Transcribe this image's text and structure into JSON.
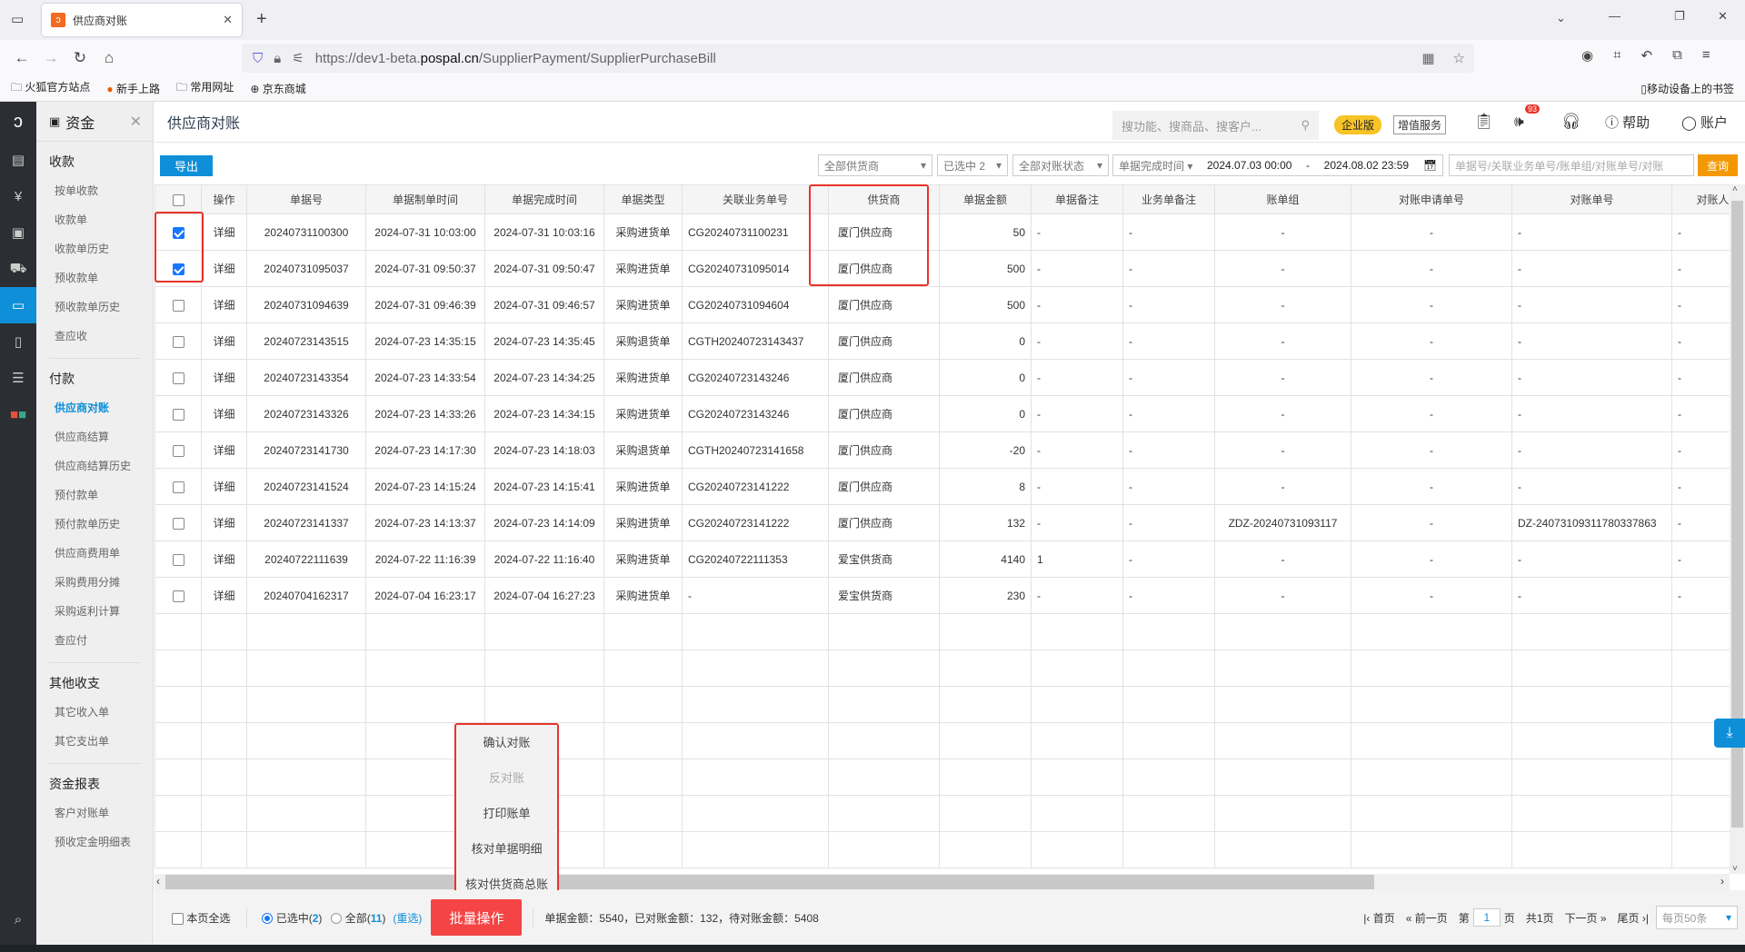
{
  "browser": {
    "tab_title": "供应商对账",
    "url_prefix": "https://dev1-beta.",
    "url_domain": "pospal.cn",
    "url_path": "/SupplierPayment/SupplierPurchaseBill",
    "bookmarks": [
      "火狐官方站点",
      "新手上路",
      "常用网址",
      "京东商城"
    ],
    "mobile_bookmarks": "移动设备上的书签"
  },
  "sidebar": {
    "title": "资金",
    "sections": [
      {
        "heading": "收款",
        "items": [
          "按单收款",
          "收款单",
          "收款单历史",
          "预收款单",
          "预收款单历史",
          "查应收"
        ]
      },
      {
        "heading": "付款",
        "items": [
          "供应商对账",
          "供应商结算",
          "供应商结算历史",
          "预付款单",
          "预付款单历史",
          "供应商费用单",
          "采购费用分摊",
          "采购返利计算",
          "查应付"
        ]
      },
      {
        "heading": "其他收支",
        "items": [
          "其它收入单",
          "其它支出单"
        ]
      },
      {
        "heading": "资金报表",
        "items": [
          "客户对账单",
          "预收定金明细表"
        ]
      }
    ],
    "active": "供应商对账"
  },
  "header": {
    "title": "供应商对账",
    "search_placeholder": "搜功能、搜商品、搜客户...",
    "enterprise": "企业版",
    "value_service": "增值服务",
    "badge_count": "93",
    "help": "帮助",
    "account": "账户"
  },
  "toolbar": {
    "export": "导出",
    "supplier_filter": "全部供货商",
    "selected_filter": "已选中 2",
    "status_filter": "全部对账状态",
    "time_type": "单据完成时间",
    "date_from": "2024.07.03 00:00",
    "date_sep": "-",
    "date_to": "2024.08.02 23:59",
    "search_placeholder": "单据号/关联业务单号/账单组/对账单号/对账",
    "query": "查询"
  },
  "table": {
    "columns": [
      "",
      "操作",
      "单据号",
      "单据制单时间",
      "单据完成时间",
      "单据类型",
      "关联业务单号",
      "供货商",
      "单据金额",
      "单据备注",
      "业务单备注",
      "账单组",
      "对账申请单号",
      "对账单号",
      "对账人"
    ],
    "rows": [
      {
        "checked": true,
        "op": "详细",
        "no": "20240731100300",
        "created": "2024-07-31 10:03:00",
        "done": "2024-07-31 10:03:16",
        "type": "采购进货单",
        "ref": "CG20240731100231",
        "supplier": "厦门供应商",
        "amount": "50",
        "note": "-",
        "bnote": "-",
        "group": "-",
        "apply": "-",
        "recon": "-",
        "person": "-"
      },
      {
        "checked": true,
        "op": "详细",
        "no": "20240731095037",
        "created": "2024-07-31 09:50:37",
        "done": "2024-07-31 09:50:47",
        "type": "采购进货单",
        "ref": "CG20240731095014",
        "supplier": "厦门供应商",
        "amount": "500",
        "note": "-",
        "bnote": "-",
        "group": "-",
        "apply": "-",
        "recon": "-",
        "person": "-"
      },
      {
        "checked": false,
        "op": "详细",
        "no": "20240731094639",
        "created": "2024-07-31 09:46:39",
        "done": "2024-07-31 09:46:57",
        "type": "采购进货单",
        "ref": "CG20240731094604",
        "supplier": "厦门供应商",
        "amount": "500",
        "note": "-",
        "bnote": "-",
        "group": "-",
        "apply": "-",
        "recon": "-",
        "person": "-"
      },
      {
        "checked": false,
        "op": "详细",
        "no": "20240723143515",
        "created": "2024-07-23 14:35:15",
        "done": "2024-07-23 14:35:45",
        "type": "采购退货单",
        "ref": "CGTH20240723143437",
        "supplier": "厦门供应商",
        "amount": "0",
        "note": "-",
        "bnote": "-",
        "group": "-",
        "apply": "-",
        "recon": "-",
        "person": "-"
      },
      {
        "checked": false,
        "op": "详细",
        "no": "20240723143354",
        "created": "2024-07-23 14:33:54",
        "done": "2024-07-23 14:34:25",
        "type": "采购进货单",
        "ref": "CG20240723143246",
        "supplier": "厦门供应商",
        "amount": "0",
        "note": "-",
        "bnote": "-",
        "group": "-",
        "apply": "-",
        "recon": "-",
        "person": "-"
      },
      {
        "checked": false,
        "op": "详细",
        "no": "20240723143326",
        "created": "2024-07-23 14:33:26",
        "done": "2024-07-23 14:34:15",
        "type": "采购进货单",
        "ref": "CG20240723143246",
        "supplier": "厦门供应商",
        "amount": "0",
        "note": "-",
        "bnote": "-",
        "group": "-",
        "apply": "-",
        "recon": "-",
        "person": "-"
      },
      {
        "checked": false,
        "op": "详细",
        "no": "20240723141730",
        "created": "2024-07-23 14:17:30",
        "done": "2024-07-23 14:18:03",
        "type": "采购退货单",
        "ref": "CGTH20240723141658",
        "supplier": "厦门供应商",
        "amount": "-20",
        "note": "-",
        "bnote": "-",
        "group": "-",
        "apply": "-",
        "recon": "-",
        "person": "-"
      },
      {
        "checked": false,
        "op": "详细",
        "no": "20240723141524",
        "created": "2024-07-23 14:15:24",
        "done": "2024-07-23 14:15:41",
        "type": "采购进货单",
        "ref": "CG20240723141222",
        "supplier": "厦门供应商",
        "amount": "8",
        "note": "-",
        "bnote": "-",
        "group": "-",
        "apply": "-",
        "recon": "-",
        "person": "-"
      },
      {
        "checked": false,
        "op": "详细",
        "no": "20240723141337",
        "created": "2024-07-23 14:13:37",
        "done": "2024-07-23 14:14:09",
        "type": "采购进货单",
        "ref": "CG20240723141222",
        "supplier": "厦门供应商",
        "amount": "132",
        "note": "-",
        "bnote": "-",
        "group": "ZDZ-20240731093117",
        "apply": "-",
        "recon": "DZ-24073109311780337863",
        "person": "-"
      },
      {
        "checked": false,
        "op": "详细",
        "no": "20240722111639",
        "created": "2024-07-22 11:16:39",
        "done": "2024-07-22 11:16:40",
        "type": "采购进货单",
        "ref": "CG20240722111353",
        "supplier": "爱宝供货商",
        "amount": "4140",
        "note": "1",
        "bnote": "-",
        "group": "-",
        "apply": "-",
        "recon": "-",
        "person": "-"
      },
      {
        "checked": false,
        "op": "详细",
        "no": "20240704162317",
        "created": "2024-07-04 16:23:17",
        "done": "2024-07-04 16:27:23",
        "type": "采购进货单",
        "ref": "-",
        "supplier": "爱宝供货商",
        "amount": "230",
        "note": "-",
        "bnote": "-",
        "group": "-",
        "apply": "-",
        "recon": "-",
        "person": "-"
      }
    ]
  },
  "batch_menu": {
    "items": [
      {
        "label": "确认对账",
        "disabled": false
      },
      {
        "label": "反对账",
        "disabled": true
      },
      {
        "label": "打印账单",
        "disabled": false
      },
      {
        "label": "核对单据明细",
        "disabled": false
      },
      {
        "label": "核对供货商总账",
        "disabled": false
      }
    ]
  },
  "footer": {
    "select_page": "本页全选",
    "selected_label": "已选中(",
    "selected_count": "2",
    "all_label": "全部(",
    "all_count": "11",
    "close_paren": ")",
    "reselect": "(重选)",
    "batch": "批量操作",
    "summary": "单据金额：5540，已对账金额：132，待对账金额：5408",
    "first": "首页",
    "prev": "前一页",
    "page_pre": "第",
    "page": "1",
    "page_post": "页",
    "total": "共1页",
    "next": "下一页",
    "last": "尾页",
    "page_size": "每页50条"
  },
  "colors": {
    "accent": "#0e8fd8",
    "danger": "#f44444",
    "highlight": "#e8332b",
    "enterprise": "#f7c325"
  }
}
